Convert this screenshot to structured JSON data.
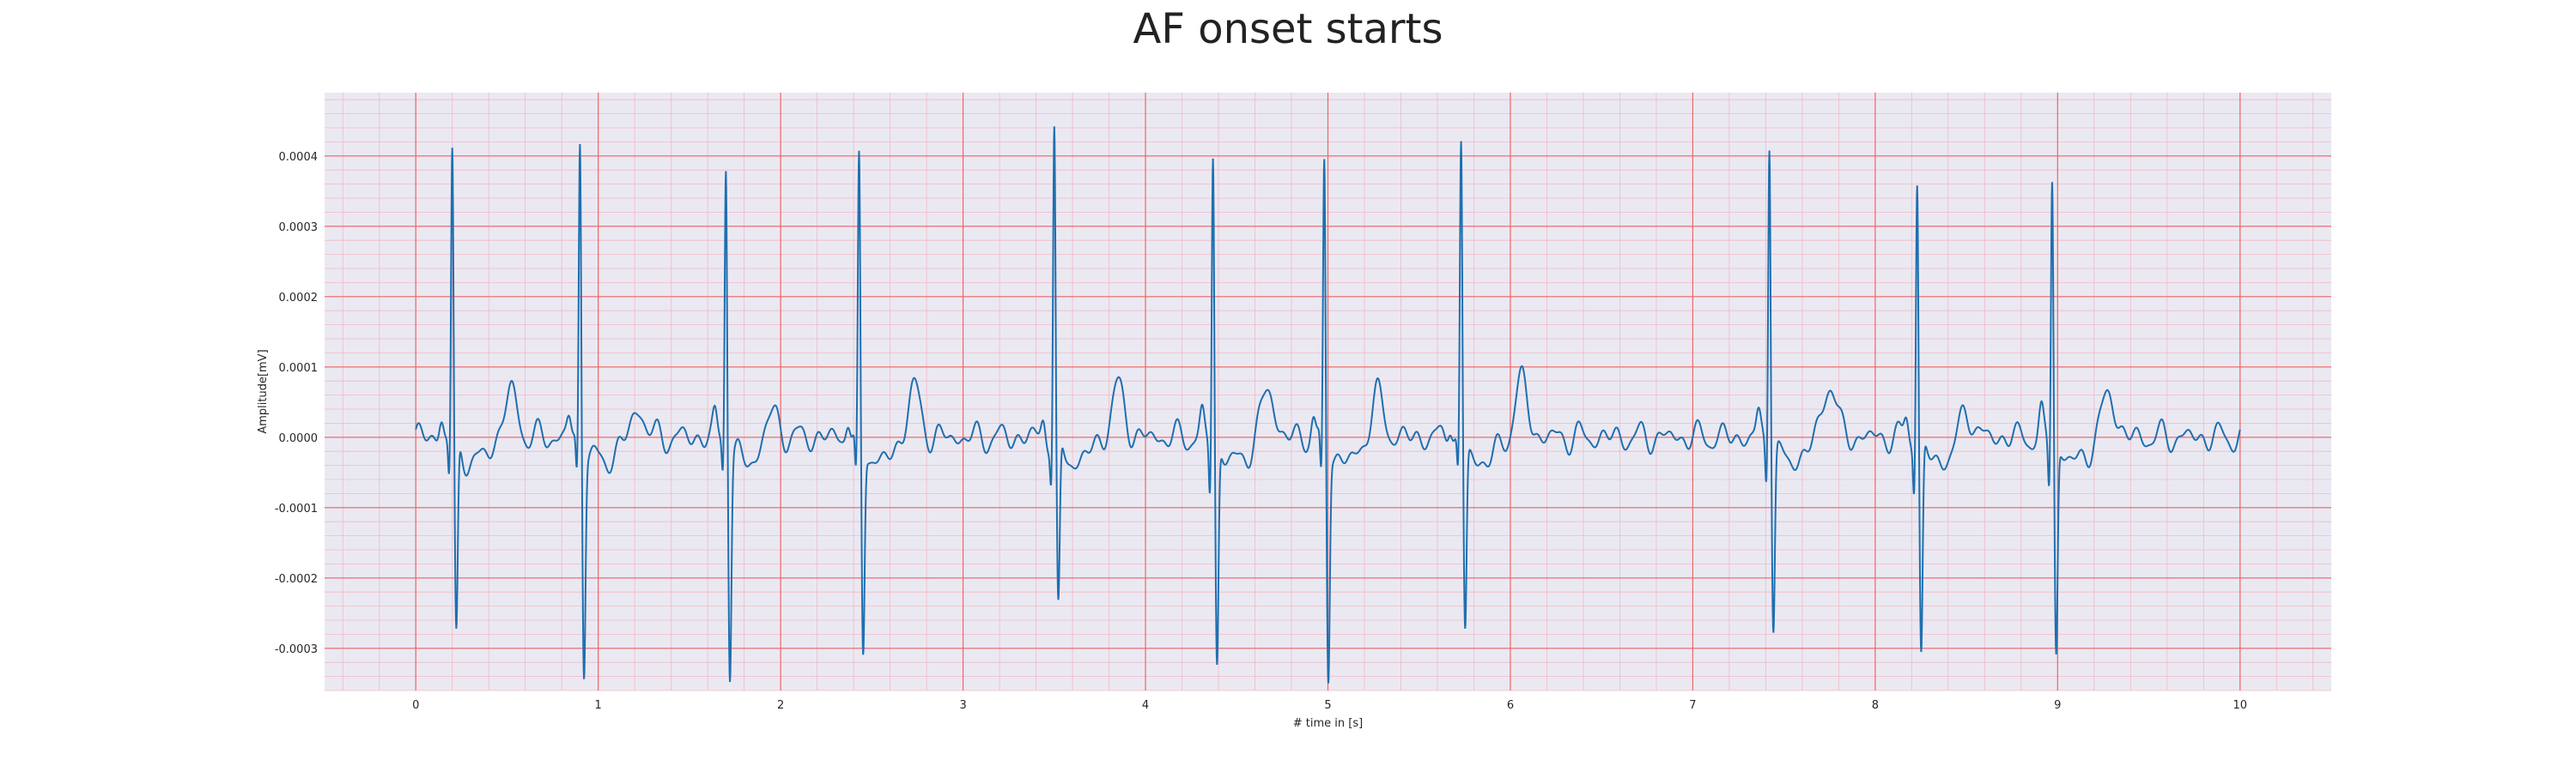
{
  "chart_data": {
    "type": "line",
    "title": "AF onset starts",
    "xlabel": "# time in [s]",
    "ylabel": "Amplitude[mV]",
    "xlim": [
      -0.5,
      10.5
    ],
    "ylim": [
      -0.00036,
      0.00049
    ],
    "x_ticks": [
      0,
      1,
      2,
      3,
      4,
      5,
      6,
      7,
      8,
      9,
      10
    ],
    "y_ticks": [
      -0.0003,
      -0.0002,
      -0.0001,
      0.0,
      0.0001,
      0.0002,
      0.0003,
      0.0004
    ],
    "y_tick_labels": [
      "-0.0003",
      "-0.0002",
      "-0.0001",
      "0.0000",
      "0.0001",
      "0.0002",
      "0.0003",
      "0.0004"
    ],
    "grid": true,
    "minor_grid": true,
    "background_color": "#eae9f2",
    "major_grid_color": "#ee6666",
    "minor_grid_color": "#f4b8c4",
    "line_color": "#1f6faf",
    "sampling_rate_hz": 500,
    "series": [
      {
        "name": "",
        "beats": [
          {
            "t": 0.2,
            "r": 0.00042,
            "s": -0.00028,
            "q": -6e-05
          },
          {
            "t": 0.9,
            "r": 0.000435,
            "s": -0.00031,
            "q": -6e-05
          },
          {
            "t": 1.7,
            "r": 0.00041,
            "s": -0.000315,
            "q": -5e-05
          },
          {
            "t": 2.43,
            "r": 0.0004,
            "s": -0.000295,
            "q": -7e-05
          },
          {
            "t": 3.5,
            "r": 0.00045,
            "s": -0.000245,
            "q": -6e-05
          },
          {
            "t": 4.37,
            "r": 0.00042,
            "s": -0.000315,
            "q": -8e-05
          },
          {
            "t": 4.98,
            "r": 0.0004,
            "s": -0.000325,
            "q": -7e-05
          },
          {
            "t": 5.73,
            "r": 0.000425,
            "s": -0.000265,
            "q": -6e-05
          },
          {
            "t": 7.42,
            "r": 0.00045,
            "s": -0.000255,
            "q": -6e-05
          },
          {
            "t": 8.23,
            "r": 0.000385,
            "s": -0.000305,
            "q": -7e-05
          },
          {
            "t": 8.97,
            "r": 0.00039,
            "s": -0.000295,
            "q": -7e-05
          }
        ],
        "t_waves": [
          {
            "t": 0.52,
            "a": 6.5e-05
          },
          {
            "t": 1.22,
            "a": 4e-05
          },
          {
            "t": 1.95,
            "a": 4e-05
          },
          {
            "t": 2.73,
            "a": 7e-05
          },
          {
            "t": 3.85,
            "a": 7e-05
          },
          {
            "t": 4.67,
            "a": 7e-05
          },
          {
            "t": 5.27,
            "a": 6e-05
          },
          {
            "t": 6.06,
            "a": 8e-05
          },
          {
            "t": 7.75,
            "a": 8e-05
          },
          {
            "t": 8.5,
            "a": 4e-05
          },
          {
            "t": 9.28,
            "a": 6.5e-05
          }
        ],
        "x_start": 0.0,
        "x_end": 10.0
      }
    ]
  }
}
